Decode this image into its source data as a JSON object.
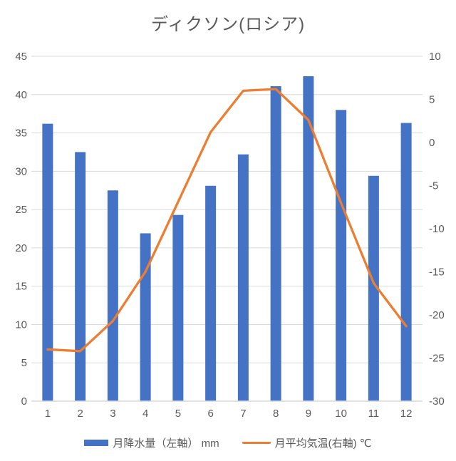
{
  "chart_data": {
    "type": "combo",
    "title": "ディクソン(ロシア)",
    "categories": [
      "1",
      "2",
      "3",
      "4",
      "5",
      "6",
      "7",
      "8",
      "9",
      "10",
      "11",
      "12"
    ],
    "series": [
      {
        "name": "月降水量（左軸） mm",
        "type": "bar",
        "axis": "left",
        "color": "#4472C4",
        "values": [
          36.2,
          32.5,
          27.5,
          21.9,
          24.3,
          28.1,
          32.2,
          41.1,
          42.4,
          38.0,
          29.4,
          36.3
        ]
      },
      {
        "name": "月平均気温(右軸) ℃",
        "type": "line",
        "axis": "right",
        "color": "#ED7D31",
        "values": [
          -24.0,
          -24.2,
          -20.7,
          -15.0,
          -6.9,
          1.2,
          6.0,
          6.2,
          2.6,
          -7.0,
          -16.3,
          -21.3
        ]
      }
    ],
    "left_axis": {
      "min": 0,
      "max": 45,
      "ticks": [
        0,
        5,
        10,
        15,
        20,
        25,
        30,
        35,
        40,
        45
      ]
    },
    "right_axis": {
      "min": -30,
      "max": 10,
      "ticks": [
        -30,
        -25,
        -20,
        -15,
        -10,
        -5,
        0,
        5,
        10
      ]
    },
    "grid": true,
    "legend_position": "bottom",
    "colors": {
      "gridline": "#D9D9D9",
      "axis_line": "#D9D9D9",
      "text": "#595959"
    }
  }
}
